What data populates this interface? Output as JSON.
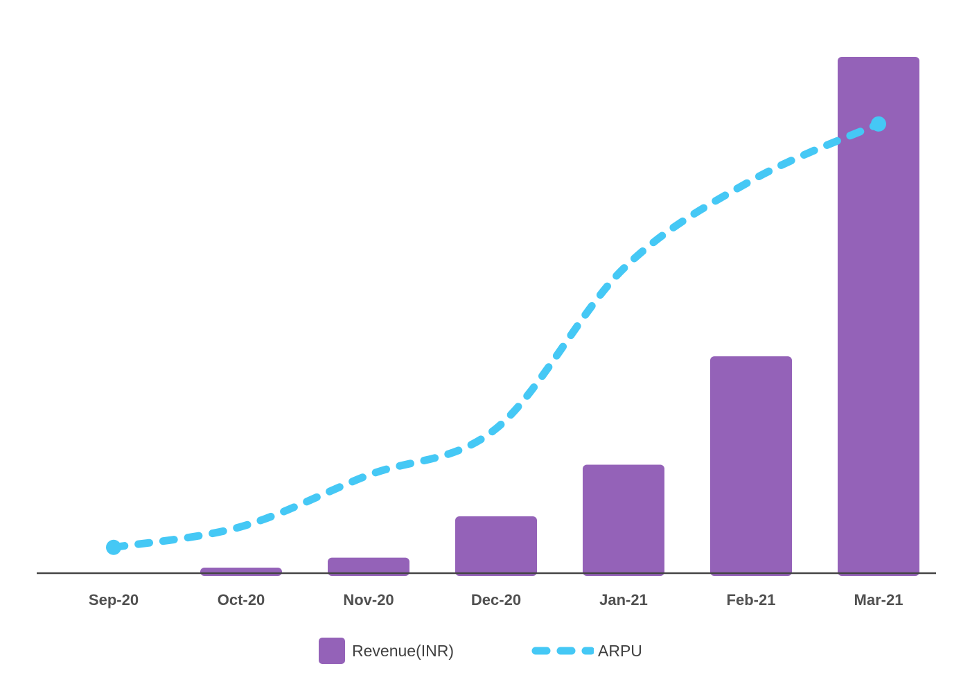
{
  "chart_data": {
    "type": "bar",
    "categories": [
      "Sep-20",
      "Oct-20",
      "Nov-20",
      "Dec-20",
      "Jan-21",
      "Feb-21",
      "Mar-21"
    ],
    "series": [
      {
        "name": "Revenue(INR)",
        "kind": "bar",
        "color": "#9462b8",
        "values": [
          0,
          1,
          3,
          11,
          21,
          42,
          100
        ]
      },
      {
        "name": "ARPU",
        "kind": "line",
        "style": "dashed",
        "color": "#45c8f5",
        "values": [
          5,
          9,
          19,
          28,
          59,
          76,
          87
        ]
      }
    ],
    "ylim": [
      0,
      100
    ],
    "title": "",
    "xlabel": "",
    "ylabel": "",
    "grid": false,
    "legend": "bottom-center"
  }
}
